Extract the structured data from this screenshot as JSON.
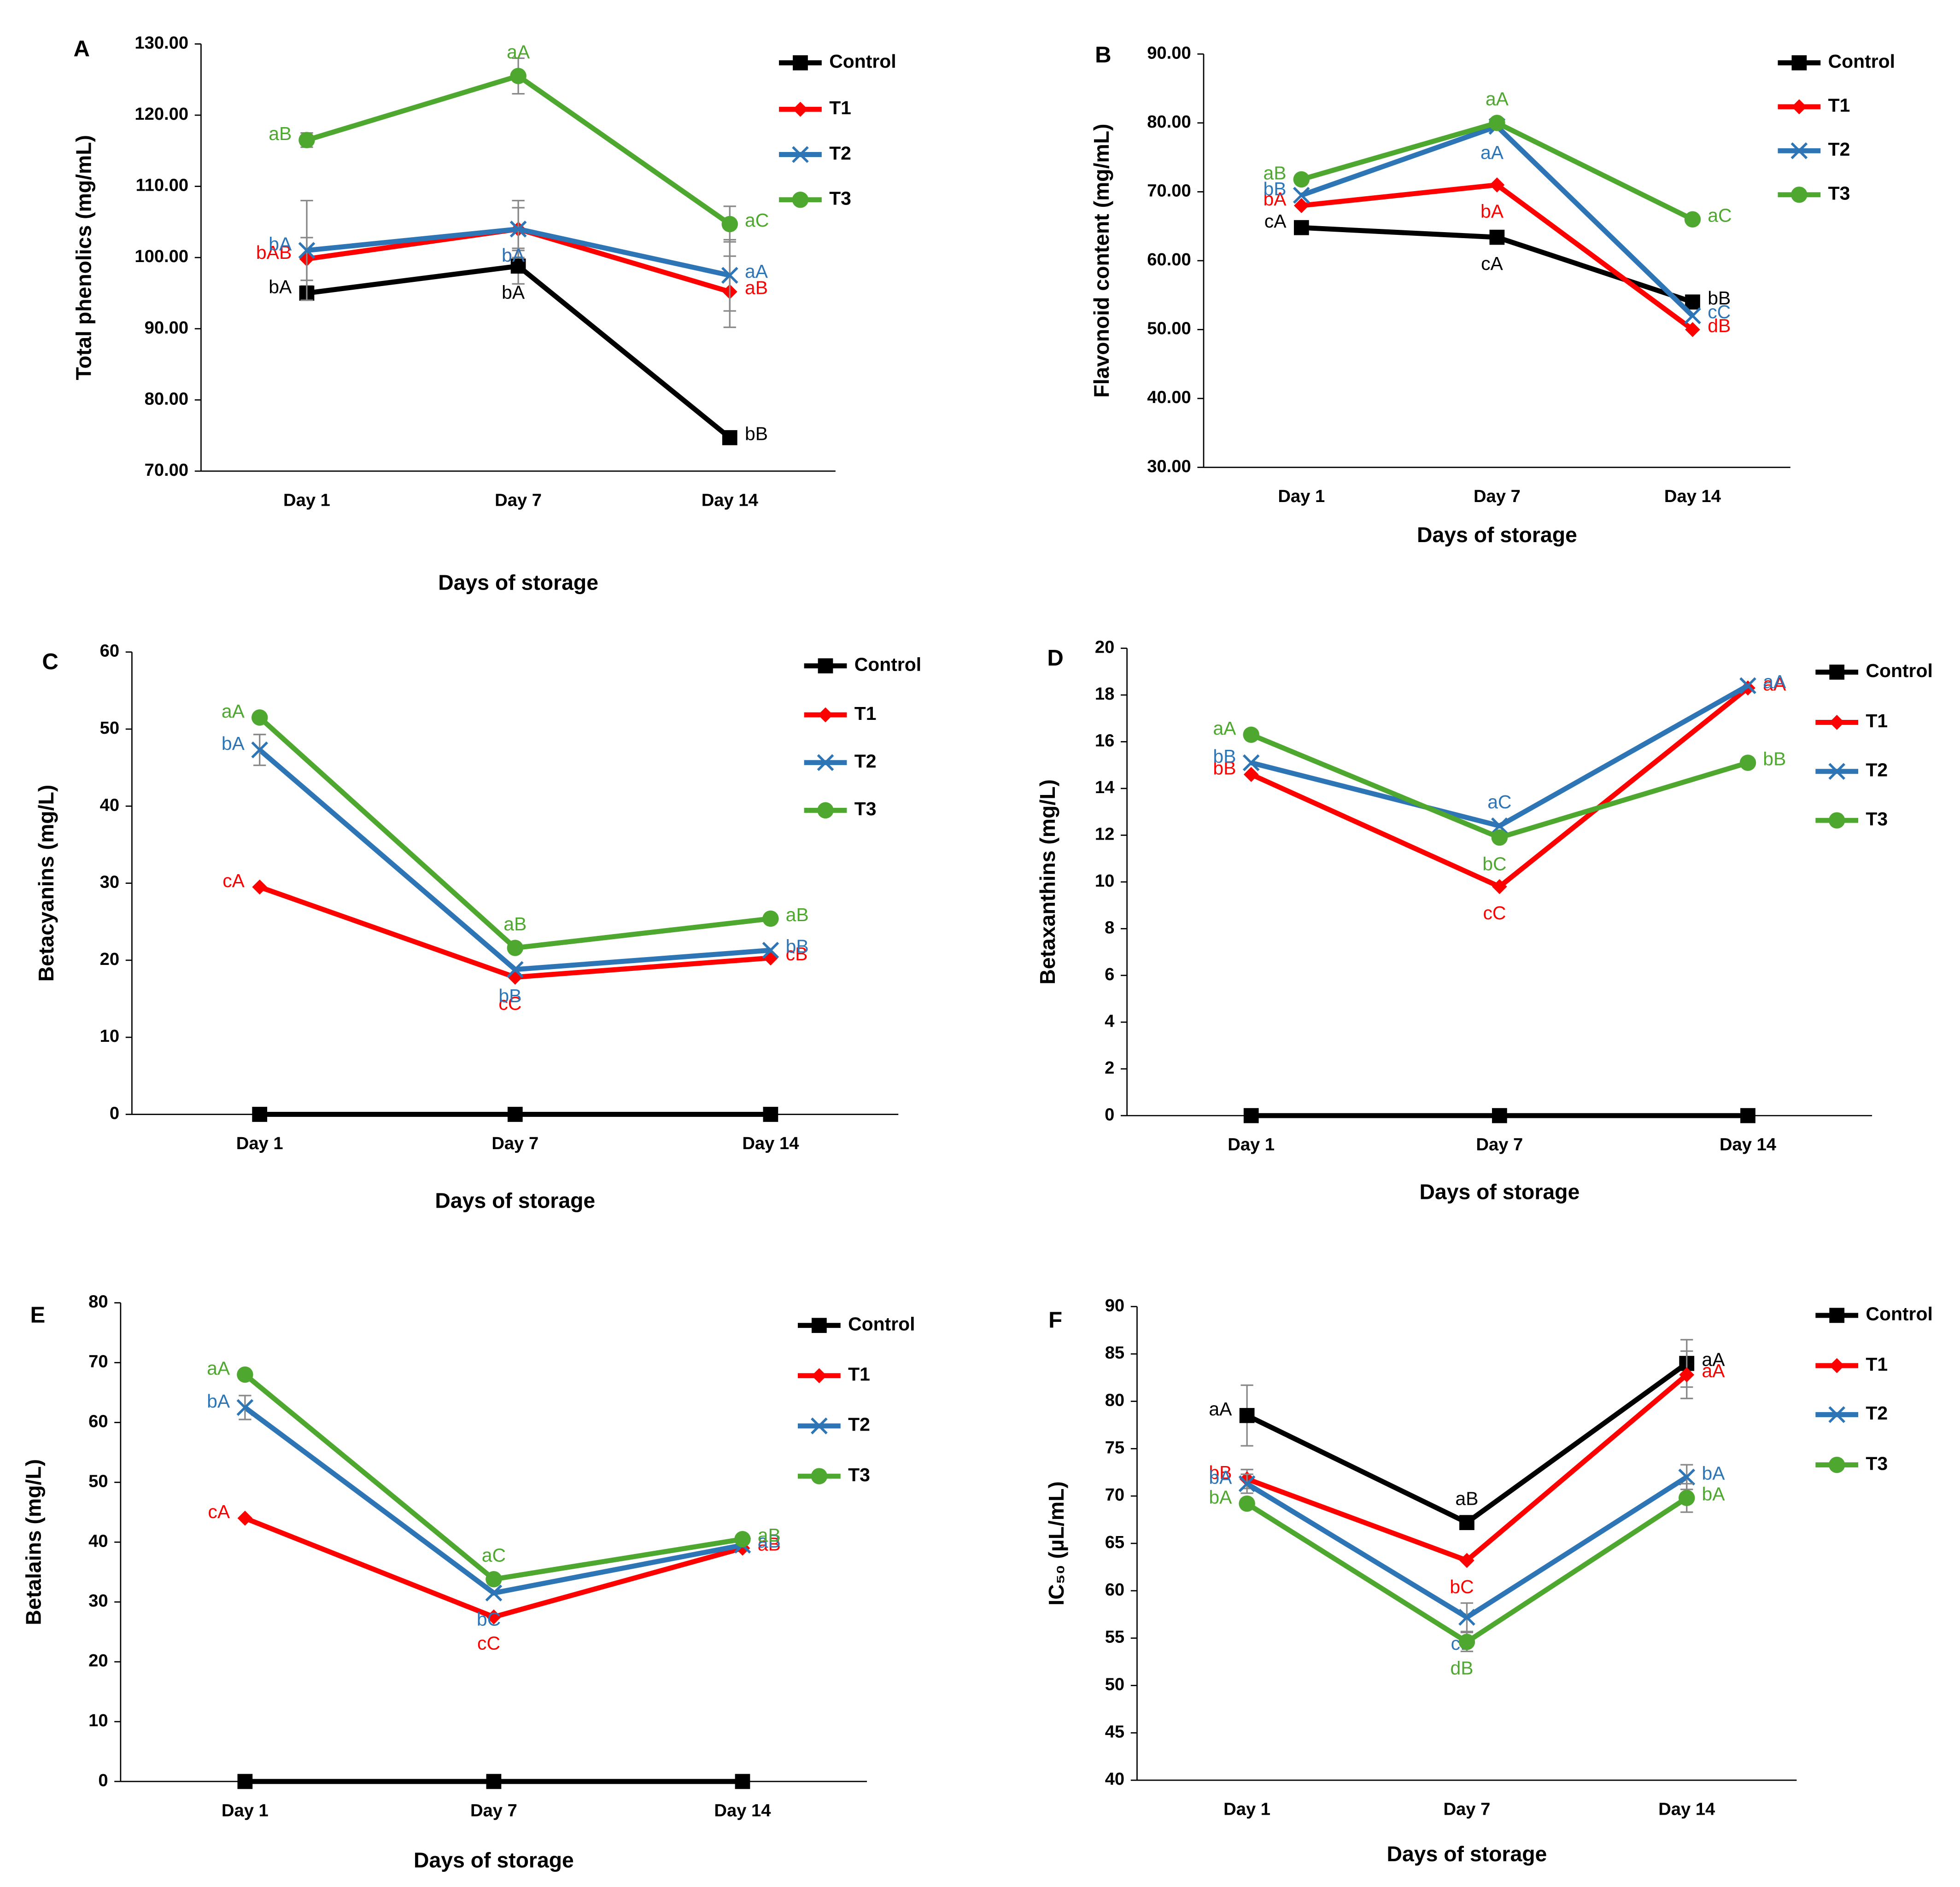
{
  "chart_data": [
    {
      "panel": "A",
      "type": "line",
      "x_label": "Days of storage",
      "y_label": "Total phenolics (mg/mL)",
      "categories": [
        "Day 1",
        "Day 7",
        "Day 14"
      ],
      "ylim": [
        70,
        130
      ],
      "yticks": [
        {
          "value": 70,
          "label": "70.00"
        },
        {
          "value": 80,
          "label": "80.00"
        },
        {
          "value": 90,
          "label": "90.00"
        },
        {
          "value": 100,
          "label": "100.00"
        },
        {
          "value": 110,
          "label": "110.00"
        },
        {
          "value": 120,
          "label": "120.00"
        },
        {
          "value": 130,
          "label": "130.00"
        }
      ],
      "legend": "right",
      "series": [
        {
          "name": "Control",
          "color": "#000000",
          "marker": "square",
          "values": [
            95,
            98.8,
            74.7
          ],
          "errors": [
            1,
            2.5,
            null
          ],
          "letters": [
            "bA",
            "bA",
            "bB"
          ]
        },
        {
          "name": "T1",
          "color": "#ff0000",
          "marker": "diamond",
          "values": [
            99.8,
            104,
            95.2
          ],
          "errors": [
            3,
            3,
            5
          ],
          "letters": [
            "bAB",
            "bA",
            "aB"
          ]
        },
        {
          "name": "T2",
          "color": "#2e75b6",
          "marker": "x",
          "values": [
            101,
            104,
            97.5
          ],
          "errors": [
            7,
            4,
            5
          ],
          "letters": [
            "bA",
            "bA",
            "aA"
          ]
        },
        {
          "name": "T3",
          "color": "#4ea72e",
          "marker": "circle",
          "values": [
            116.5,
            125.5,
            104.7
          ],
          "errors": [
            1,
            2.5,
            2.5
          ],
          "letters": [
            "aB",
            "aA",
            "aC"
          ]
        }
      ]
    },
    {
      "panel": "B",
      "type": "line",
      "x_label": "Days of storage",
      "y_label": "Flavonoid content (mg/mL)",
      "categories": [
        "Day 1",
        "Day 7",
        "Day 14"
      ],
      "ylim": [
        30,
        90
      ],
      "yticks": [
        {
          "value": 30,
          "label": "30.00"
        },
        {
          "value": 40,
          "label": "40.00"
        },
        {
          "value": 50,
          "label": "50.00"
        },
        {
          "value": 60,
          "label": "60.00"
        },
        {
          "value": 70,
          "label": "70.00"
        },
        {
          "value": 80,
          "label": "80.00"
        },
        {
          "value": 90,
          "label": "90.00"
        }
      ],
      "legend": "right",
      "series": [
        {
          "name": "Control",
          "color": "#000000",
          "marker": "square",
          "values": [
            64.8,
            63.4,
            54
          ],
          "letters": [
            "cA",
            "cA",
            "bB"
          ]
        },
        {
          "name": "T1",
          "color": "#ff0000",
          "marker": "diamond",
          "values": [
            68,
            71,
            50
          ],
          "letters": [
            "bA",
            "bA",
            "dB"
          ]
        },
        {
          "name": "T2",
          "color": "#2e75b6",
          "marker": "x",
          "values": [
            69.5,
            79.5,
            52
          ],
          "letters": [
            "bB",
            "aA",
            "cC"
          ]
        },
        {
          "name": "T3",
          "color": "#4ea72e",
          "marker": "circle",
          "values": [
            71.8,
            80,
            66
          ],
          "letters": [
            "aB",
            "aA",
            "aC"
          ]
        }
      ]
    },
    {
      "panel": "C",
      "type": "line",
      "x_label": "Days of storage",
      "y_label": "Betacyanins (mg/L)",
      "categories": [
        "Day 1",
        "Day 7",
        "Day 14"
      ],
      "ylim": [
        0,
        60
      ],
      "yticks": [
        0,
        10,
        20,
        30,
        40,
        50,
        60
      ],
      "legend": "right",
      "series": [
        {
          "name": "Control",
          "color": "#000000",
          "marker": "square",
          "values": [
            0,
            0,
            0
          ],
          "letters": [
            null,
            null,
            null
          ]
        },
        {
          "name": "T1",
          "color": "#ff0000",
          "marker": "diamond",
          "values": [
            29.5,
            17.8,
            20.3
          ],
          "letters": [
            "cA",
            "cC",
            "cB"
          ]
        },
        {
          "name": "T2",
          "color": "#2e75b6",
          "marker": "x",
          "values": [
            47.3,
            18.8,
            21.3
          ],
          "errors": [
            2,
            null,
            null
          ],
          "letters": [
            "bA",
            "bB",
            "bB"
          ]
        },
        {
          "name": "T3",
          "color": "#4ea72e",
          "marker": "circle",
          "values": [
            51.5,
            21.6,
            25.4
          ],
          "letters": [
            "aA",
            "aB",
            "aB"
          ]
        }
      ]
    },
    {
      "panel": "D",
      "type": "line",
      "x_label": "Days of storage",
      "y_label": "Betaxanthins (mg/L)",
      "categories": [
        "Day 1",
        "Day 7",
        "Day 14"
      ],
      "ylim": [
        0,
        20
      ],
      "yticks": [
        0,
        2,
        4,
        6,
        8,
        10,
        12,
        14,
        16,
        18,
        20
      ],
      "legend": "right",
      "series": [
        {
          "name": "Control",
          "color": "#000000",
          "marker": "square",
          "values": [
            0,
            0,
            0
          ],
          "letters": [
            null,
            null,
            null
          ]
        },
        {
          "name": "T1",
          "color": "#ff0000",
          "marker": "diamond",
          "values": [
            14.6,
            9.8,
            18.3
          ],
          "letters": [
            "bB",
            "cC",
            "aA"
          ]
        },
        {
          "name": "T2",
          "color": "#2e75b6",
          "marker": "x",
          "values": [
            15.1,
            12.4,
            18.4
          ],
          "letters": [
            "bB",
            "aC",
            "aA"
          ]
        },
        {
          "name": "T3",
          "color": "#4ea72e",
          "marker": "circle",
          "values": [
            16.3,
            11.9,
            15.1
          ],
          "letters": [
            "aA",
            "bC",
            "bB"
          ]
        }
      ]
    },
    {
      "panel": "E",
      "type": "line",
      "x_label": "Days of storage",
      "y_label": "Betalains (mg/L)",
      "categories": [
        "Day 1",
        "Day 7",
        "Day 14"
      ],
      "ylim": [
        0,
        80
      ],
      "yticks": [
        0,
        10,
        20,
        30,
        40,
        50,
        60,
        70,
        80
      ],
      "legend": "right",
      "series": [
        {
          "name": "Control",
          "color": "#000000",
          "marker": "square",
          "values": [
            0,
            0,
            0
          ],
          "letters": [
            null,
            null,
            null
          ]
        },
        {
          "name": "T1",
          "color": "#ff0000",
          "marker": "diamond",
          "values": [
            44,
            27.5,
            39
          ],
          "letters": [
            "cA",
            "cC",
            "aB"
          ]
        },
        {
          "name": "T2",
          "color": "#2e75b6",
          "marker": "x",
          "values": [
            62.5,
            31.5,
            39.5
          ],
          "errors": [
            2,
            null,
            null
          ],
          "letters": [
            "bA",
            "bC",
            "aB"
          ]
        },
        {
          "name": "T3",
          "color": "#4ea72e",
          "marker": "circle",
          "values": [
            68,
            33.8,
            40.5
          ],
          "letters": [
            "aA",
            "aC",
            "aB"
          ]
        }
      ]
    },
    {
      "panel": "F",
      "type": "line",
      "x_label": "Days of storage",
      "y_label": "IC₅₀ (µL/mL)",
      "categories": [
        "Day 1",
        "Day 7",
        "Day 14"
      ],
      "ylim": [
        40,
        90
      ],
      "yticks": [
        40,
        45,
        50,
        55,
        60,
        65,
        70,
        75,
        80,
        85,
        90
      ],
      "legend": "right",
      "series": [
        {
          "name": "Control",
          "color": "#000000",
          "marker": "square",
          "values": [
            78.5,
            67.2,
            84
          ],
          "errors": [
            3.2,
            0.5,
            2.5
          ],
          "letters": [
            "aA",
            "aB",
            "aA"
          ]
        },
        {
          "name": "T1",
          "color": "#ff0000",
          "marker": "diamond",
          "values": [
            71.8,
            63.2,
            82.8
          ],
          "errors": [
            1,
            null,
            2.5
          ],
          "letters": [
            "bB",
            "bC",
            "aA"
          ]
        },
        {
          "name": "T2",
          "color": "#2e75b6",
          "marker": "x",
          "values": [
            71.3,
            57.2,
            72
          ],
          "errors": [
            1,
            1.5,
            1.3
          ],
          "letters": [
            "bA",
            "cB",
            "bA"
          ]
        },
        {
          "name": "T3",
          "color": "#4ea72e",
          "marker": "circle",
          "values": [
            69.2,
            54.6,
            69.8
          ],
          "errors": [
            0.5,
            1,
            1.5
          ],
          "letters": [
            "bA",
            "dB",
            "bA"
          ]
        }
      ]
    }
  ]
}
